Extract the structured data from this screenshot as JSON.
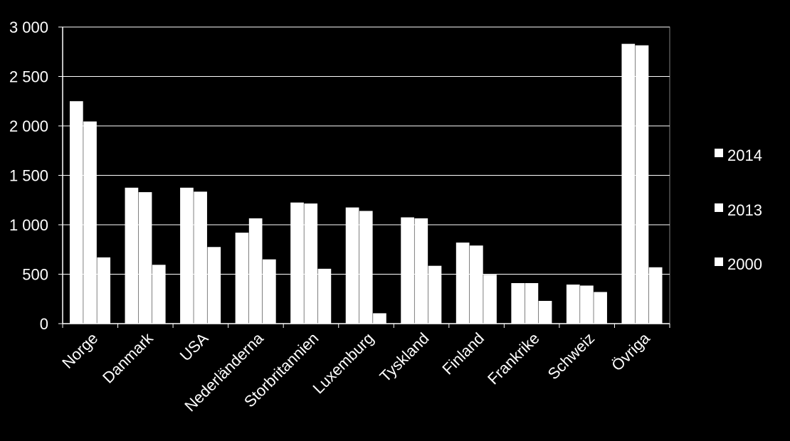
{
  "chart_data": {
    "type": "bar",
    "categories": [
      "Norge",
      "Danmark",
      "USA",
      "Nederländerna",
      "Storbritannien",
      "Luxemburg",
      "Tyskland",
      "Finland",
      "Frankrike",
      "Schweiz",
      "Övriga"
    ],
    "series": [
      {
        "name": "2014",
        "values": [
          2250,
          1375,
          1375,
          920,
          1225,
          1175,
          1075,
          820,
          410,
          395,
          2830
        ]
      },
      {
        "name": "2013",
        "values": [
          2045,
          1330,
          1335,
          1065,
          1215,
          1140,
          1065,
          790,
          410,
          385,
          2815
        ]
      },
      {
        "name": "2000",
        "values": [
          670,
          595,
          775,
          650,
          555,
          105,
          585,
          495,
          230,
          320,
          570
        ]
      }
    ],
    "ylim": [
      0,
      3000
    ],
    "yticks": [
      "0",
      "500",
      "1 000",
      "1 500",
      "2 000",
      "2 500",
      "3 000"
    ],
    "ytick_values": [
      0,
      500,
      1000,
      1500,
      2000,
      2500,
      3000
    ],
    "grid": true,
    "legend_position": "right",
    "colors": {
      "background": "#000000",
      "bars": "#ffffff",
      "axes": "#ffffff",
      "text": "#ffffff"
    }
  }
}
